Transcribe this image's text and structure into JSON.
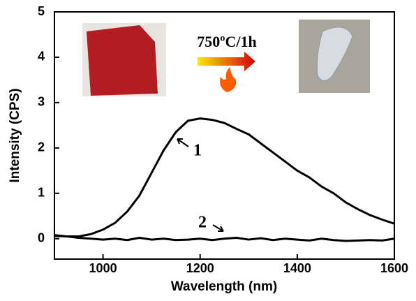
{
  "chart_data": {
    "type": "line",
    "x_label": "Wavelength (nm)",
    "y_label": "Intensity (CPS)",
    "x": [
      900,
      925,
      950,
      975,
      1000,
      1025,
      1050,
      1075,
      1100,
      1125,
      1150,
      1175,
      1200,
      1225,
      1250,
      1275,
      1300,
      1325,
      1350,
      1375,
      1400,
      1425,
      1450,
      1475,
      1500,
      1525,
      1550,
      1575,
      1600
    ],
    "series": [
      {
        "name": "1",
        "color": "#000000",
        "values": [
          0.08,
          0.05,
          0.05,
          0.1,
          0.2,
          0.35,
          0.6,
          0.95,
          1.45,
          1.95,
          2.35,
          2.6,
          2.65,
          2.62,
          2.55,
          2.42,
          2.3,
          2.1,
          1.9,
          1.7,
          1.5,
          1.35,
          1.15,
          1.0,
          0.8,
          0.65,
          0.52,
          0.42,
          0.33
        ]
      },
      {
        "name": "2",
        "color": "#000000",
        "values": [
          0.06,
          0.05,
          0.02,
          0.0,
          -0.02,
          0.0,
          -0.03,
          0.02,
          -0.02,
          0.0,
          -0.03,
          -0.02,
          0.0,
          -0.03,
          0.0,
          0.02,
          -0.02,
          0.01,
          -0.03,
          0.0,
          -0.02,
          -0.04,
          0.0,
          -0.03,
          -0.05,
          -0.04,
          -0.03,
          -0.04,
          0.0
        ]
      }
    ],
    "annotation": "750ºC/1h",
    "xlim": [
      900,
      1600
    ],
    "xticks": [
      1000,
      1200,
      1400,
      1600
    ],
    "ylim": [
      -0.45,
      5
    ],
    "yticks": [
      0,
      1,
      2,
      3,
      4,
      5
    ]
  }
}
